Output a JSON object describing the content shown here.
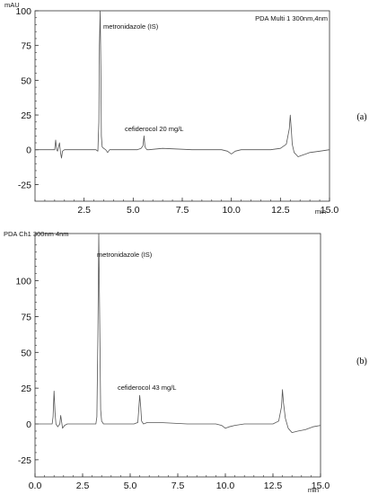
{
  "chart_data": [
    {
      "type": "line",
      "panel_tag": "(a)",
      "unit_label": "mAU",
      "corner_label": "PDA Multi 1 300nm,4nm",
      "x_unit": "min",
      "xlim": [
        0.0,
        15.0
      ],
      "ylim": [
        -37,
        100
      ],
      "x_ticks": [
        "2.5",
        "5.0",
        "7.5",
        "10.0",
        "12.5",
        "15.0"
      ],
      "y_ticks": [
        "100",
        "75",
        "50",
        "25",
        "0",
        "-25"
      ],
      "annotations": [
        {
          "text": "metronidazole (IS)",
          "x": 3.4,
          "y": 97
        },
        {
          "text": "cefiderocol 20 mg/L",
          "x": 4.6,
          "y": 14
        }
      ],
      "series": [
        {
          "x": [
            0.0,
            1.0,
            1.05,
            1.1,
            1.15,
            1.25,
            1.3,
            1.35,
            1.4,
            1.5,
            3.0,
            3.1,
            3.2,
            3.25,
            3.28,
            3.32,
            3.35,
            3.38,
            3.42,
            3.5,
            3.6,
            3.7,
            3.8,
            4.5,
            5.2,
            5.4,
            5.5,
            5.55,
            5.6,
            5.65,
            5.7,
            5.8,
            6.5,
            8.0,
            9.5,
            9.8,
            10.0,
            10.2,
            10.5,
            11.0,
            12.0,
            12.5,
            12.8,
            12.95,
            13.0,
            13.05,
            13.1,
            13.2,
            13.4,
            13.6,
            13.8,
            14.0,
            14.5,
            15.0
          ],
          "y": [
            0,
            0,
            7,
            0,
            -1,
            5,
            -2,
            -6,
            -1,
            0,
            0,
            0,
            -1,
            20,
            75,
            100,
            60,
            10,
            2,
            1,
            0,
            -2,
            0,
            0,
            0,
            1,
            3,
            10,
            2,
            1,
            0,
            0,
            1,
            0,
            0,
            -1,
            -3,
            -1,
            0,
            0,
            0,
            1,
            4,
            15,
            25,
            15,
            4,
            -2,
            -5,
            -4,
            -3,
            -2,
            -1,
            0
          ]
        }
      ]
    },
    {
      "type": "line",
      "panel_tag": "(b)",
      "corner_label": "PDA Ch1 300nm 4nm",
      "x_unit": "min",
      "xlim": [
        0.0,
        15.0
      ],
      "ylim": [
        -37,
        133
      ],
      "x_ticks": [
        "0.0",
        "2.5",
        "5.0",
        "7.5",
        "10.0",
        "12.5",
        "15.0"
      ],
      "y_ticks": [
        "100",
        "75",
        "50",
        "25",
        "0",
        "-25"
      ],
      "annotations": [
        {
          "text": "metronidazole (IS)",
          "x": 3.3,
          "y": 120
        },
        {
          "text": "cefiderocol 43 mg/L",
          "x": 4.4,
          "y": 29
        }
      ],
      "series": [
        {
          "x": [
            0.0,
            0.9,
            0.95,
            1.0,
            1.05,
            1.1,
            1.2,
            1.3,
            1.35,
            1.45,
            1.55,
            1.7,
            3.0,
            3.2,
            3.25,
            3.3,
            3.35,
            3.4,
            3.45,
            3.5,
            3.6,
            3.8,
            4.5,
            5.2,
            5.4,
            5.45,
            5.5,
            5.55,
            5.6,
            5.7,
            5.9,
            6.5,
            8.0,
            9.5,
            9.8,
            10.0,
            10.2,
            10.5,
            11.0,
            12.0,
            12.5,
            12.8,
            12.95,
            13.0,
            13.05,
            13.15,
            13.3,
            13.5,
            13.8,
            14.2,
            14.6,
            15.0
          ],
          "y": [
            0,
            0,
            5,
            23,
            8,
            0,
            -2,
            0,
            6,
            -3,
            -1,
            0,
            0,
            0,
            5,
            60,
            133,
            70,
            10,
            2,
            0,
            0,
            0,
            0,
            1,
            10,
            20,
            12,
            2,
            0,
            1,
            1,
            0,
            0,
            -1,
            -3,
            -2,
            -1,
            0,
            0,
            0,
            2,
            12,
            24,
            15,
            4,
            -3,
            -6,
            -5,
            -4,
            -2,
            -1
          ]
        }
      ]
    }
  ]
}
